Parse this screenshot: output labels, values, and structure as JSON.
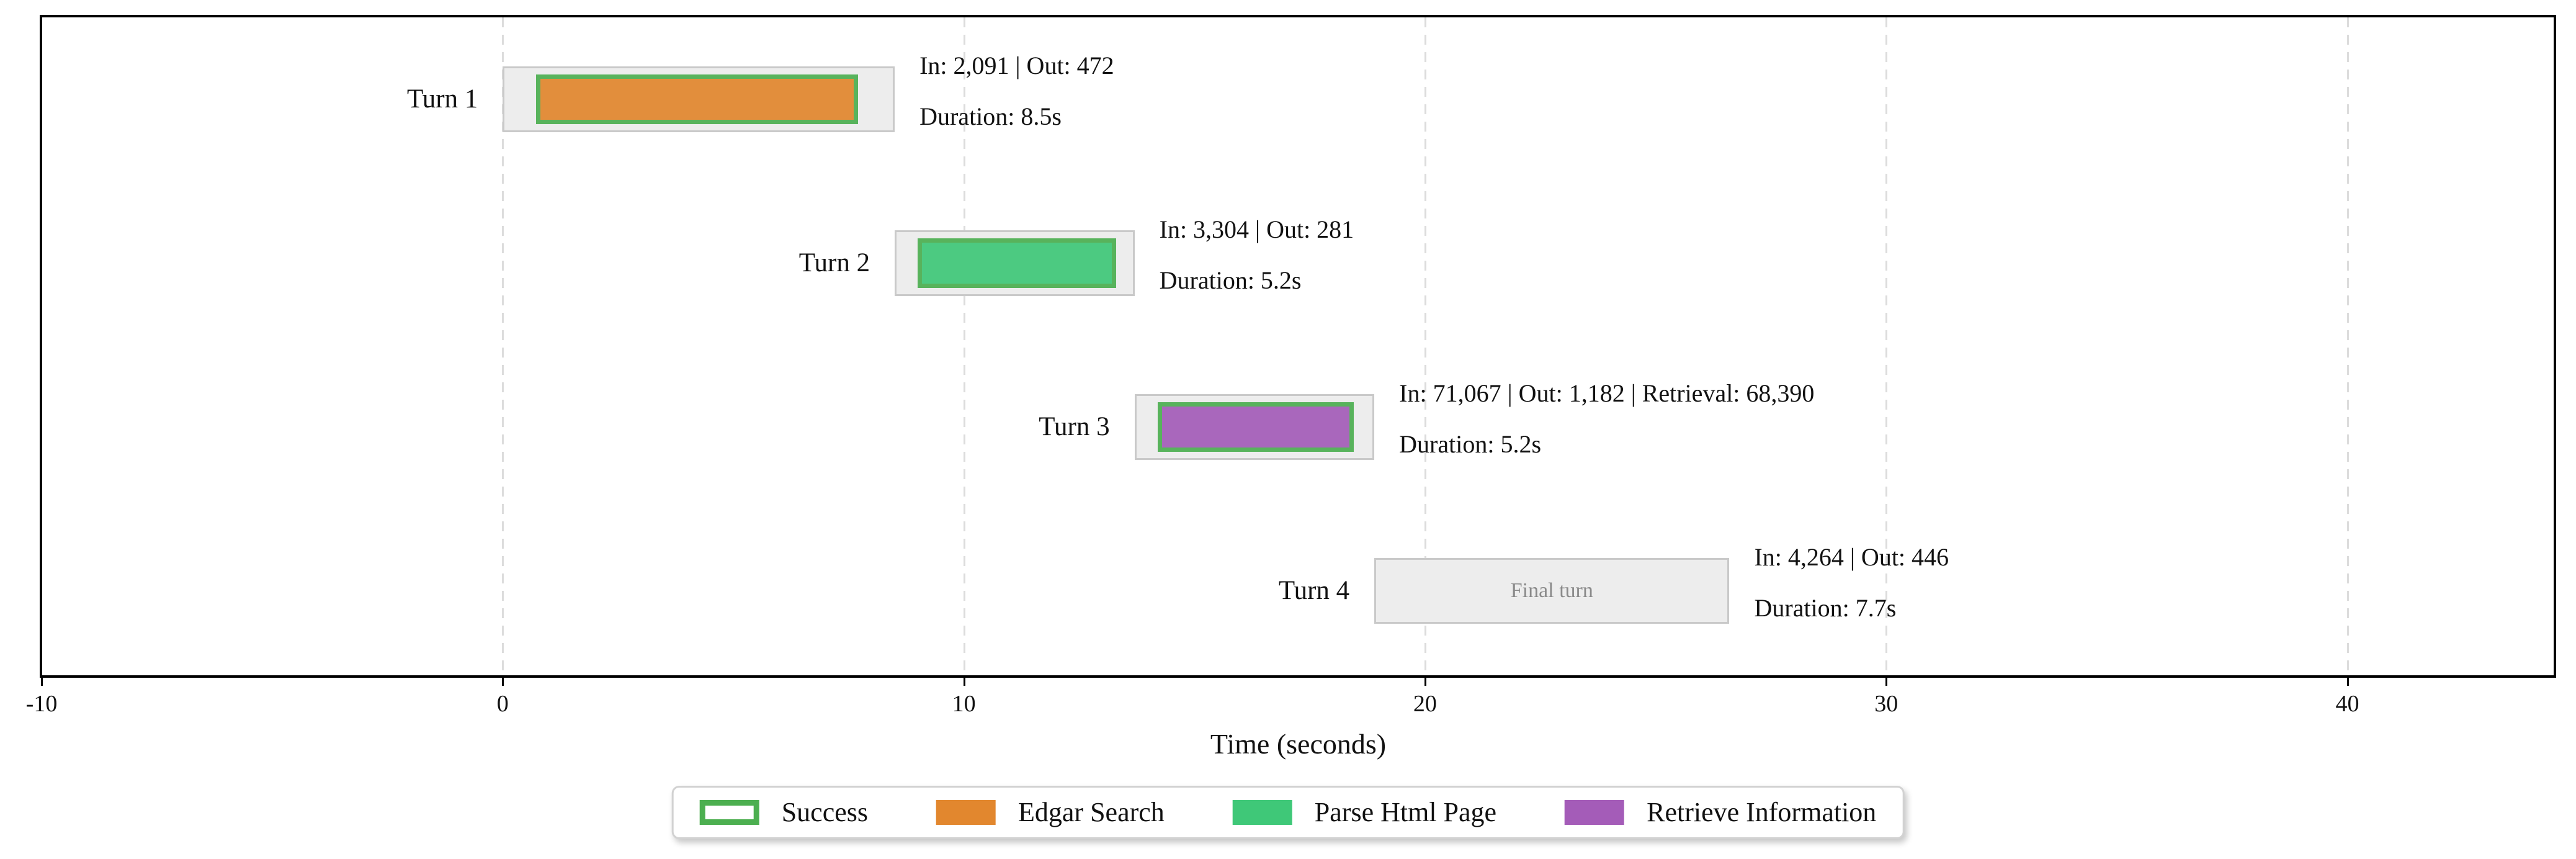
{
  "figure": {
    "background": "#ffffff"
  },
  "chart_data": {
    "type": "gantt",
    "title": "",
    "xlabel": "Time (seconds)",
    "ylabel": "",
    "xlim": [
      -10,
      44.5
    ],
    "xticks": [
      -10,
      0,
      10,
      20,
      30,
      40
    ],
    "xtick_labels": [
      "-10",
      "0",
      "10",
      "20",
      "30",
      "40"
    ],
    "grid": {
      "show": true,
      "orientation": "vertical",
      "style": "dashed",
      "gridline_ticks": [
        0,
        10,
        20,
        30,
        40
      ]
    },
    "rows": 4,
    "turns": [
      {
        "label": "Turn 1",
        "start_s": 0,
        "end_s": 8.5,
        "duration_s": 8.5,
        "tool": "Edgar Search",
        "tool_start_s": 0.72,
        "tool_end_s": 7.7,
        "success": true,
        "box_text": "",
        "tokens_text": "In: 2,091 | Out: 472",
        "duration_text": "Duration: 8.5s"
      },
      {
        "label": "Turn 2",
        "start_s": 8.5,
        "end_s": 13.7,
        "duration_s": 5.2,
        "tool": "Parse Html Page",
        "tool_start_s": 9.0,
        "tool_end_s": 13.3,
        "success": true,
        "box_text": "",
        "tokens_text": "In: 3,304 | Out: 281",
        "duration_text": "Duration: 5.2s"
      },
      {
        "label": "Turn 3",
        "start_s": 13.7,
        "end_s": 18.9,
        "duration_s": 5.2,
        "tool": "Retrieve Information",
        "tool_start_s": 14.2,
        "tool_end_s": 18.45,
        "success": true,
        "box_text": "",
        "tokens_text": "In: 71,067 | Out: 1,182 | Retrieval: 68,390",
        "duration_text": "Duration: 5.2s"
      },
      {
        "label": "Turn 4",
        "start_s": 18.9,
        "end_s": 26.6,
        "duration_s": 7.7,
        "tool": null,
        "tool_start_s": null,
        "tool_end_s": null,
        "success": null,
        "box_text": "Final turn",
        "tokens_text": "In: 4,264 | Out: 446",
        "duration_text": "Duration: 7.7s"
      }
    ],
    "legend": [
      {
        "label": "Success",
        "swatch": "outline",
        "color": "#4caf50"
      },
      {
        "label": "Edgar Search",
        "swatch": "fill",
        "color": "#e2872e"
      },
      {
        "label": "Parse Html Page",
        "swatch": "fill",
        "color": "#3fc878"
      },
      {
        "label": "Retrieve Information",
        "swatch": "fill",
        "color": "#a45cb8"
      }
    ],
    "legend_position": "bottom-center",
    "colors": {
      "success_edge": "#4caf50",
      "edgar_search": "#e2872e",
      "parse_html_page": "#3fc878",
      "retrieve_information": "#a45cb8",
      "turn_box_fill": "#ededed",
      "turn_box_edge": "#c9c9c9",
      "grid_line": "#dcdcdc",
      "plot_border": "#000000",
      "axis_text": "#111111",
      "final_turn_text": "#8a8a8a"
    }
  }
}
